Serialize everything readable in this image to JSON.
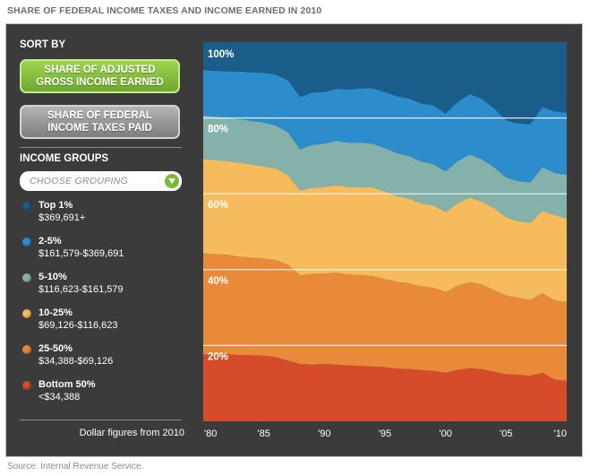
{
  "page_title": "SHARE OF FEDERAL INCOME TAXES AND INCOME EARNED IN 2010",
  "sidebar": {
    "sort_heading": "SORT BY",
    "sort_buttons": [
      {
        "line1": "SHARE OF ADJUSTED",
        "line2": "GROSS INCOME EARNED",
        "state": "selected"
      },
      {
        "line1": "SHARE OF FEDERAL",
        "line2": "INCOME TAXES PAID",
        "state": "unselected"
      }
    ],
    "groups_heading": "INCOME GROUPS",
    "dropdown": {
      "label": "CHOOSE GROUPING",
      "icon": "chevron-down-icon"
    },
    "footnote": "Dollar figures from 2010"
  },
  "source": "Source: Internal Revenue Service.",
  "colors": {
    "top1": "#1a5d8a",
    "p2_5": "#2d8ccc",
    "p5_10": "#84b2ab",
    "p10_25": "#f6bb5c",
    "p25_50": "#e88a3a",
    "bottom50": "#d64b2a",
    "panel": "#3b3b3b",
    "gridline": "#ffffff"
  },
  "chart_data": {
    "type": "area",
    "stacked": true,
    "title": "SHARE OF FEDERAL INCOME TAXES AND INCOME EARNED IN 2010",
    "x": [
      1980,
      1981,
      1982,
      1983,
      1984,
      1985,
      1986,
      1987,
      1988,
      1989,
      1990,
      1991,
      1992,
      1993,
      1994,
      1995,
      1996,
      1997,
      1998,
      1999,
      2000,
      2001,
      2002,
      2003,
      2004,
      2005,
      2006,
      2007,
      2008,
      2009,
      2010
    ],
    "x_tick_labels": [
      "'80",
      "'85",
      "'90",
      "'95",
      "'00",
      "'05",
      "'10"
    ],
    "x_tick_values": [
      1980,
      1985,
      1990,
      1995,
      2000,
      2005,
      2010
    ],
    "ylim": [
      0,
      100
    ],
    "y_ticks": [
      20,
      40,
      60,
      80,
      100
    ],
    "y_tick_labels": [
      "20%",
      "40%",
      "60%",
      "80%",
      "100%"
    ],
    "grid": true,
    "legend_placement": "left-sidebar",
    "series": [
      {
        "name": "Bottom 50%",
        "range": "<$34,388",
        "color_key": "bottom50",
        "values": [
          17.7,
          17.6,
          17.7,
          17.5,
          17.4,
          17.3,
          16.9,
          16.0,
          15.1,
          15.0,
          15.1,
          15.0,
          14.7,
          14.6,
          14.5,
          14.3,
          13.9,
          13.8,
          13.5,
          13.3,
          12.8,
          13.6,
          14.0,
          13.7,
          13.1,
          12.4,
          12.3,
          12.0,
          12.8,
          11.0,
          10.7
        ]
      },
      {
        "name": "25-50%",
        "range": "$34,388-$69,126",
        "color_key": "p25_50",
        "values": [
          26.6,
          26.5,
          26.2,
          25.9,
          25.8,
          25.6,
          25.6,
          25.3,
          23.4,
          23.9,
          23.9,
          24.2,
          24.0,
          24.0,
          23.8,
          23.2,
          22.9,
          22.6,
          22.1,
          21.9,
          21.3,
          22.2,
          22.7,
          22.4,
          21.5,
          20.8,
          20.3,
          20.0,
          21.0,
          20.9,
          20.8
        ]
      },
      {
        "name": "10-25%",
        "range": "$69,126-$116,623",
        "color_key": "p10_25",
        "values": [
          24.9,
          24.8,
          24.7,
          24.8,
          24.5,
          24.3,
          24.2,
          23.6,
          22.3,
          22.7,
          22.8,
          23.1,
          23.1,
          23.2,
          23.4,
          23.1,
          22.6,
          22.3,
          21.9,
          21.7,
          21.1,
          21.7,
          22.3,
          21.8,
          21.6,
          20.6,
          20.2,
          20.3,
          21.7,
          22.5,
          22.0
        ]
      },
      {
        "name": "5-10%",
        "range": "$116,623-$161,579",
        "color_key": "p5_10",
        "values": [
          11.5,
          11.4,
          11.4,
          11.5,
          11.5,
          11.6,
          11.3,
          11.3,
          10.9,
          11.3,
          11.4,
          11.7,
          11.6,
          11.7,
          11.5,
          11.4,
          11.3,
          11.2,
          11.0,
          10.9,
          10.7,
          11.1,
          11.3,
          11.2,
          10.8,
          10.5,
          10.5,
          10.7,
          11.5,
          11.1,
          11.5
        ]
      },
      {
        "name": "2-5%",
        "range": "$161,579-$369,691",
        "color_key": "p2_5",
        "values": [
          11.9,
          12.1,
          12.3,
          12.5,
          12.8,
          13.1,
          13.4,
          13.7,
          13.8,
          13.8,
          13.6,
          13.7,
          14.1,
          14.3,
          14.6,
          14.8,
          15.0,
          15.2,
          15.3,
          15.5,
          15.2,
          15.6,
          16.0,
          15.9,
          15.5,
          15.1,
          15.2,
          15.4,
          15.9,
          16.2,
          16.4
        ]
      },
      {
        "name": "Top 1%",
        "range": "$369,691+",
        "color_key": "top1",
        "values": [
          7.4,
          7.6,
          7.7,
          7.8,
          8.0,
          8.1,
          8.6,
          10.1,
          14.5,
          13.3,
          13.2,
          12.3,
          12.5,
          12.2,
          12.2,
          13.2,
          14.3,
          14.9,
          16.2,
          16.7,
          18.9,
          15.8,
          13.7,
          15.0,
          17.5,
          20.6,
          21.5,
          21.6,
          17.1,
          18.3,
          18.6
        ]
      }
    ]
  }
}
